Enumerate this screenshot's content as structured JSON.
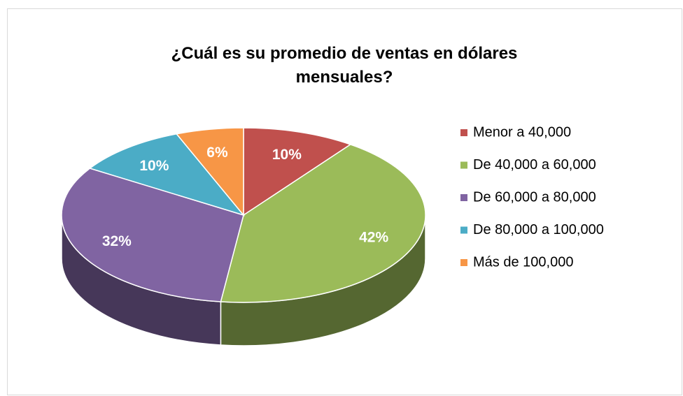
{
  "chart_data": {
    "type": "pie",
    "title": "¿Cuál es su promedio de ventas en dólares mensuales?",
    "categories": [
      "Menor a 40,000",
      "De 40,000 a 60,000",
      "De 60,000 a 80,000",
      "De 80,000 a 100,000",
      "Más de 100,000"
    ],
    "values": [
      10,
      42,
      32,
      10,
      6
    ],
    "value_labels": [
      "10%",
      "42%",
      "32%",
      "10%",
      "6%"
    ],
    "colors": [
      "#c0504d",
      "#9bbb59",
      "#8064a2",
      "#4bacc6",
      "#f79646"
    ],
    "legend": "right"
  }
}
